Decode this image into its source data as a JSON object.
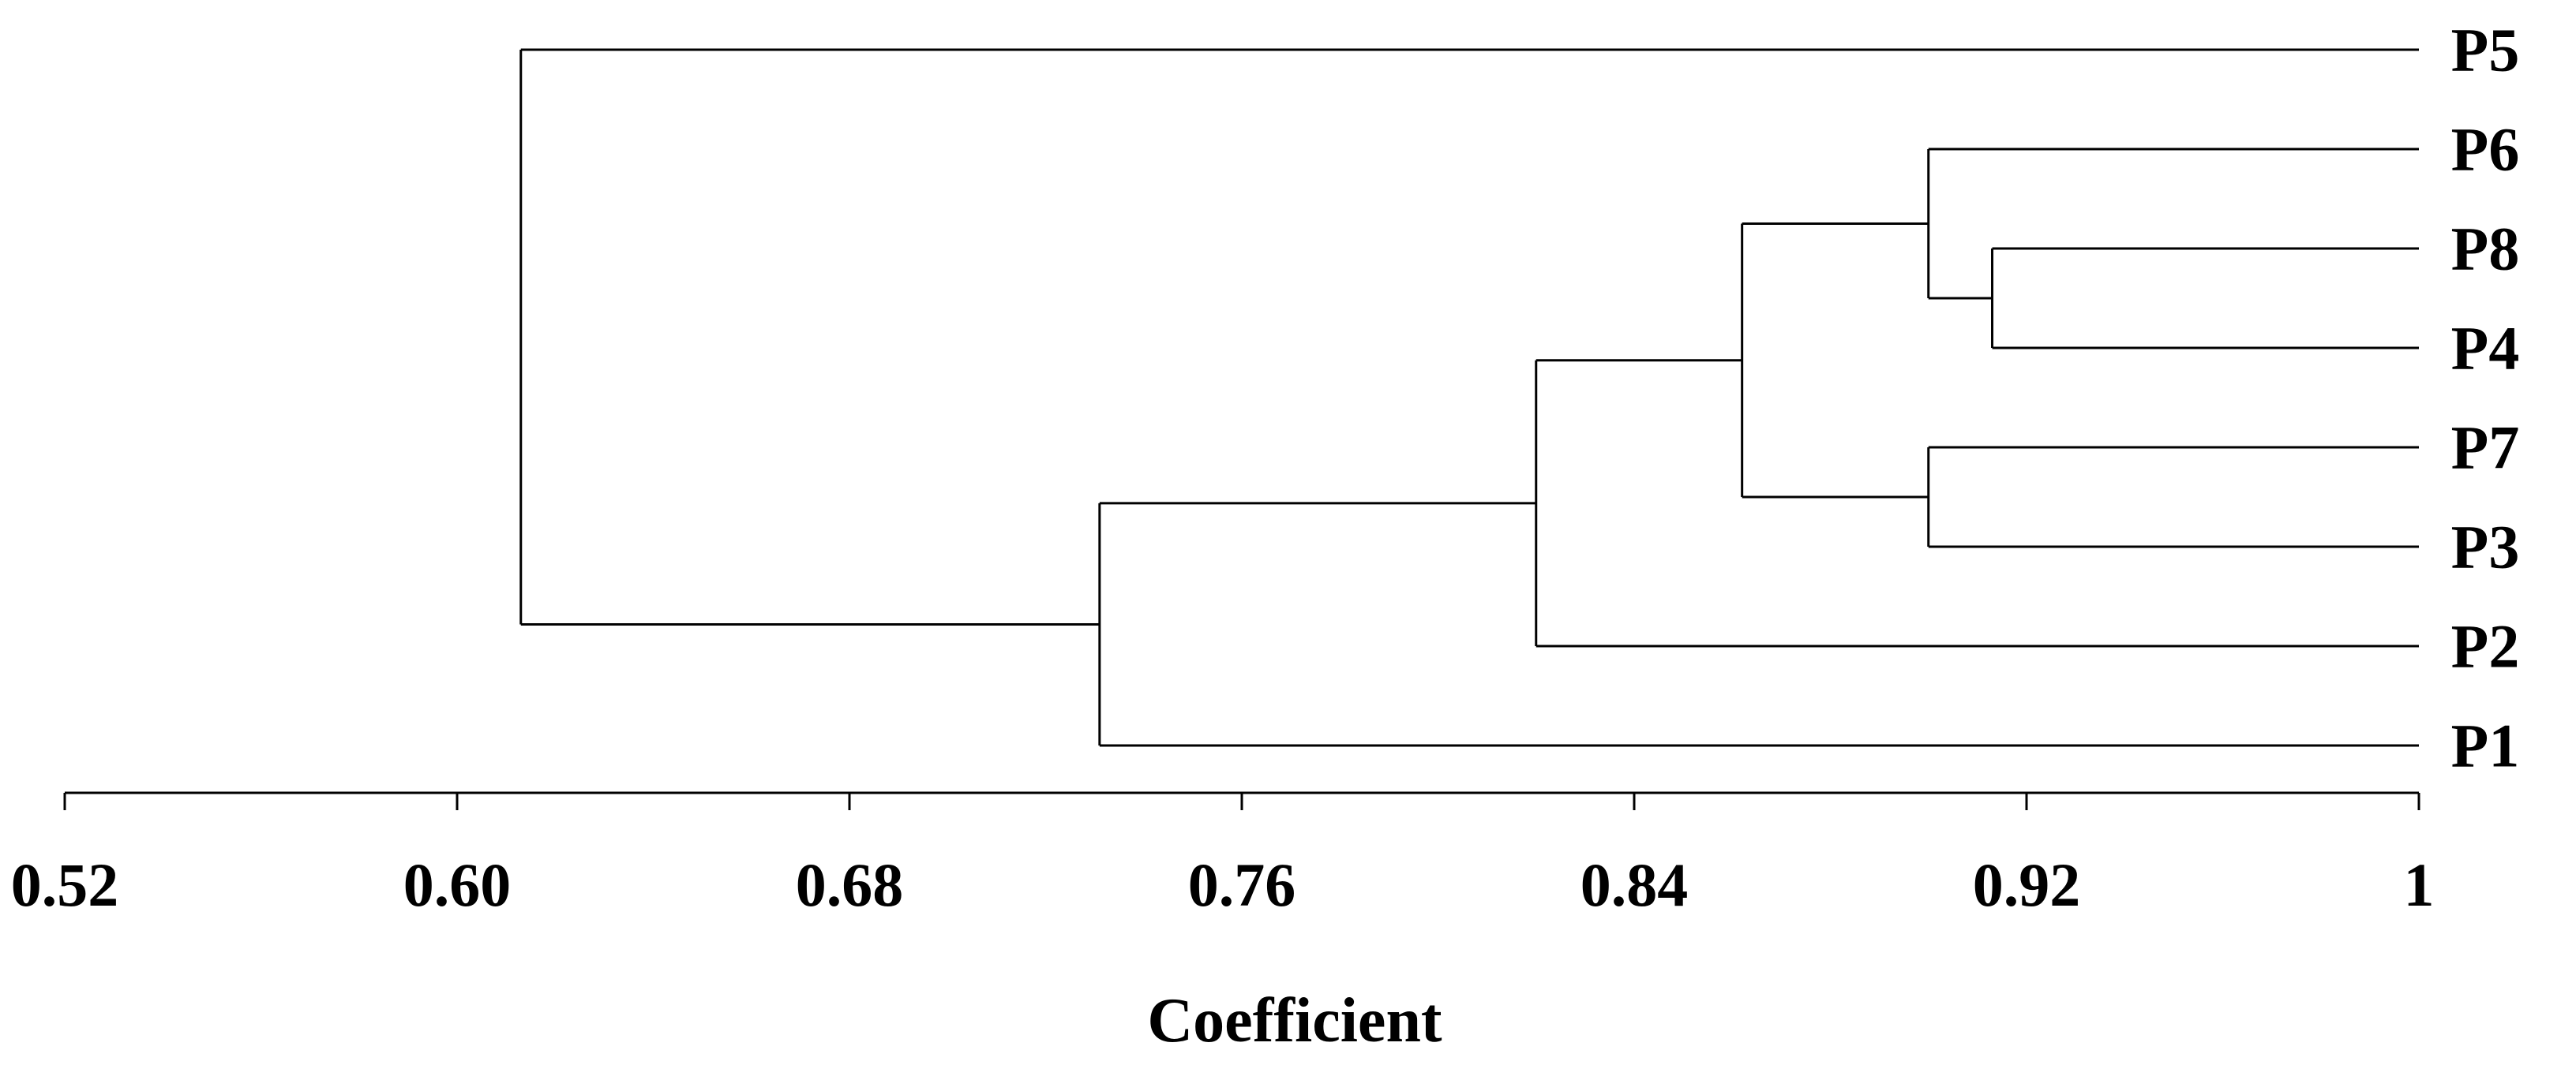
{
  "chart_data": {
    "type": "dendrogram",
    "xlabel": "Coefficient",
    "xlim": [
      0.52,
      1.0
    ],
    "ticks": [
      {
        "value": 0.52,
        "label": "0.52"
      },
      {
        "value": 0.6,
        "label": "0.60"
      },
      {
        "value": 0.68,
        "label": "0.68"
      },
      {
        "value": 0.76,
        "label": "0.76"
      },
      {
        "value": 0.84,
        "label": "0.84"
      },
      {
        "value": 0.92,
        "label": "0.92"
      },
      {
        "value": 1.0,
        "label": "1"
      }
    ],
    "leaves": [
      "P5",
      "P6",
      "P8",
      "P4",
      "P7",
      "P3",
      "P2",
      "P1"
    ],
    "merges": [
      {
        "id": "c1",
        "left": "P8",
        "right": "P4",
        "height": 0.913
      },
      {
        "id": "c2",
        "left": "P6",
        "right": "c1",
        "height": 0.9
      },
      {
        "id": "c3",
        "left": "P7",
        "right": "P3",
        "height": 0.9
      },
      {
        "id": "c4",
        "left": "c2",
        "right": "c3",
        "height": 0.862
      },
      {
        "id": "c5",
        "left": "c4",
        "right": "P2",
        "height": 0.82
      },
      {
        "id": "c6",
        "left": "c5",
        "right": "P1",
        "height": 0.731
      },
      {
        "id": "c7",
        "left": "P5",
        "right": "c6",
        "height": 0.613
      }
    ]
  }
}
